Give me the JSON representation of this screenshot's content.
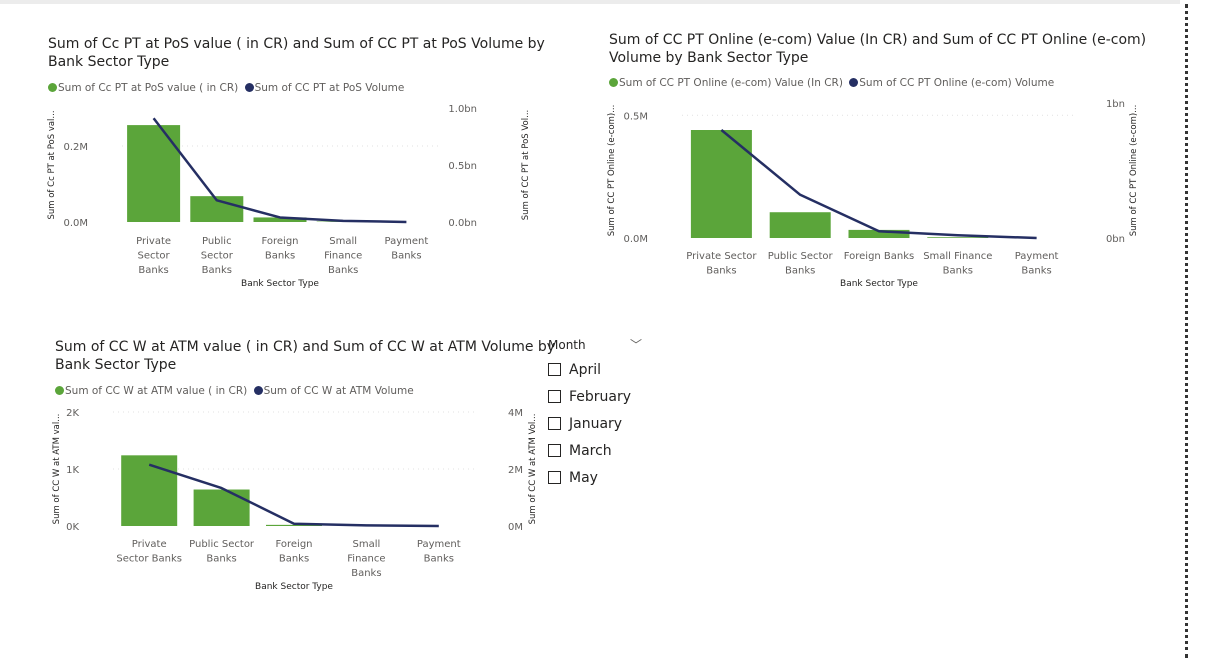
{
  "charts": [
    {
      "id": "pos",
      "title_line1": "Sum of Cc PT at PoS value ( in CR) and Sum of CC PT at PoS Volume by",
      "title_line2": "Bank Sector Type",
      "legend": [
        "Sum of Cc PT at PoS value ( in CR)",
        "Sum of CC PT at PoS Volume"
      ],
      "y1_axis_label": "Sum of Cc PT at PoS val...",
      "y2_axis_label": "Sum of CC PT at PoS Vol...",
      "x_axis_label": "Bank Sector Type",
      "y1_ticks": [
        "0.0M",
        "0.2M"
      ],
      "y2_ticks": [
        "0.0bn",
        "0.5bn",
        "1.0bn"
      ]
    },
    {
      "id": "ecom",
      "title_line1": "Sum of CC PT Online (e-com) Value (In CR) and Sum of CC PT Online (e-com)",
      "title_line2": "Volume by Bank Sector Type",
      "legend": [
        "Sum of CC PT Online (e-com) Value (In CR)",
        "Sum of CC PT Online (e-com) Volume"
      ],
      "y1_axis_label": "Sum of CC PT Online (e-com)...",
      "y2_axis_label": "Sum of CC PT Online (e-com)...",
      "x_axis_label": "Bank Sector Type",
      "y1_ticks": [
        "0.0M",
        "0.5M"
      ],
      "y2_ticks": [
        "0bn",
        "1bn"
      ]
    },
    {
      "id": "atm",
      "title_line1": "Sum of CC W at ATM value ( in CR) and Sum of CC W at ATM Volume by",
      "title_line2": "Bank Sector Type",
      "legend": [
        "Sum of CC W at ATM value ( in CR)",
        "Sum of CC W at ATM Volume"
      ],
      "y1_axis_label": "Sum of CC W at ATM val...",
      "y2_axis_label": "Sum of CC W at ATM Vol...",
      "x_axis_label": "Bank Sector Type",
      "y1_ticks": [
        "0K",
        "1K",
        "2K"
      ],
      "y2_ticks": [
        "0M",
        "2M",
        "4M"
      ]
    }
  ],
  "chart_data": [
    {
      "type": "bar",
      "combo": "bar+line",
      "categories": [
        "Private Sector Banks",
        "Public Sector Banks",
        "Foreign Banks",
        "Small Finance Banks",
        "Payment Banks"
      ],
      "series": [
        {
          "name": "Sum of Cc PT at PoS value ( in CR)",
          "kind": "bar",
          "axis": "y1",
          "values": [
            0.255,
            0.068,
            0.012,
            0.001,
            0.0
          ]
        },
        {
          "name": "Sum of CC PT at PoS Volume",
          "kind": "line",
          "axis": "y2",
          "values": [
            0.91,
            0.19,
            0.04,
            0.01,
            0.0
          ]
        }
      ],
      "y1_unit": "M",
      "y2_unit": "bn",
      "y1lim": [
        0,
        0.3
      ],
      "y2lim": [
        0,
        1.0
      ],
      "colors": {
        "bar": "#5ba53a",
        "line": "#252f63"
      },
      "grid": true
    },
    {
      "type": "bar",
      "combo": "bar+line",
      "categories": [
        "Private Sector Banks",
        "Public Sector Banks",
        "Foreign Banks",
        "Small Finance Banks",
        "Payment Banks"
      ],
      "series": [
        {
          "name": "Sum of CC PT Online (e-com) Value (In CR)",
          "kind": "bar",
          "axis": "y1",
          "values": [
            0.44,
            0.105,
            0.033,
            0.003,
            0.0
          ]
        },
        {
          "name": "Sum of CC PT Online (e-com) Volume",
          "kind": "line",
          "axis": "y2",
          "values": [
            0.8,
            0.32,
            0.05,
            0.02,
            0.0
          ]
        }
      ],
      "y1_unit": "M",
      "y2_unit": "bn",
      "y1lim": [
        0,
        0.55
      ],
      "y2lim": [
        0,
        1.0
      ],
      "colors": {
        "bar": "#5ba53a",
        "line": "#252f63"
      },
      "grid": true
    },
    {
      "type": "bar",
      "combo": "bar+line",
      "categories": [
        "Private Sector Banks",
        "Public Sector Banks",
        "Foreign Banks",
        "Small Finance Banks",
        "Payment Banks"
      ],
      "series": [
        {
          "name": "Sum of CC W at ATM value ( in CR)",
          "kind": "bar",
          "axis": "y1",
          "values": [
            1240,
            640,
            20,
            5,
            0
          ]
        },
        {
          "name": "Sum of CC W at ATM Volume",
          "kind": "line",
          "axis": "y2",
          "values": [
            2150000,
            1330000,
            80000,
            20000,
            0
          ]
        }
      ],
      "y1_unit": "K",
      "y2_unit": "M",
      "y1lim": [
        0,
        2000
      ],
      "y2lim": [
        0,
        4000000
      ],
      "colors": {
        "bar": "#5ba53a",
        "line": "#252f63"
      },
      "grid": true
    }
  ],
  "slicer": {
    "title": "Month",
    "options": [
      "April",
      "February",
      "January",
      "March",
      "May"
    ]
  }
}
